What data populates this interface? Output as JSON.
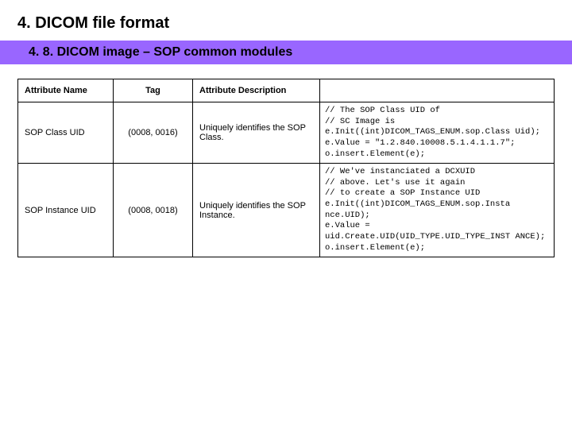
{
  "header": {
    "main_title": "4. DICOM file format",
    "subtitle": "4. 8. DICOM image – SOP common modules"
  },
  "table": {
    "columns": [
      "Attribute Name",
      "Tag",
      "Attribute Description",
      ""
    ],
    "rows": [
      {
        "name": "SOP Class UID",
        "tag": "(0008, 0016)",
        "desc": "Uniquely identifies the SOP Class.",
        "code": "// The SOP Class UID of\n// SC Image is\ne.Init((int)DICOM_TAGS_ENUM.sop.Class Uid);\ne.Value = \"1.2.840.10008.5.1.4.1.1.7\";\no.insert.Element(e);"
      },
      {
        "name": "SOP Instance UID",
        "tag": "(0008, 0018)",
        "desc": "Uniquely identifies the SOP Instance.",
        "code": "// We've instanciated a DCXUID\n// above. Let's use it again\n// to create a SOP Instance UID\ne.Init((int)DICOM_TAGS_ENUM.sop.Insta nce.UID);\ne.Value = uid.Create.UID(UID_TYPE.UID_TYPE_INST ANCE);\no.insert.Element(e);"
      }
    ]
  },
  "style": {
    "subtitle_bg": "#9966ff",
    "border_color": "#000000",
    "code_font": "Courier New"
  }
}
